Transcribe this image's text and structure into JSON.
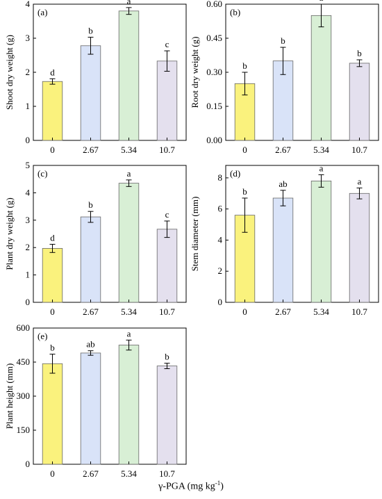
{
  "figure": {
    "xlabel_prefix": "γ-PGA (mg kg",
    "xlabel_sup": "-1",
    "xlabel_suffix": ")",
    "bar_colors": [
      "#faf27d",
      "#d9e3f8",
      "#d8efd5",
      "#e4e0ee"
    ],
    "bar_stroke": "#666666"
  },
  "chart_data": [
    {
      "type": "bar",
      "panel": "(a)",
      "ylabel": "Shoot dry weight (g)",
      "categories": [
        "0",
        "2.67",
        "5.34",
        "10.7"
      ],
      "values": [
        1.73,
        2.78,
        3.8,
        2.33
      ],
      "errors": [
        0.08,
        0.25,
        0.1,
        0.3
      ],
      "letters": [
        "d",
        "b",
        "a",
        "c"
      ],
      "ylim": [
        0,
        4
      ],
      "yticks": [
        0,
        1,
        2,
        3,
        4
      ],
      "ytick_labels": [
        "0",
        "1",
        "2",
        "3",
        "4"
      ]
    },
    {
      "type": "bar",
      "panel": "(b)",
      "ylabel": "Root dry weight (g)",
      "categories": [
        "0",
        "2.67",
        "5.34",
        "10.7"
      ],
      "values": [
        0.25,
        0.35,
        0.55,
        0.34
      ],
      "errors": [
        0.05,
        0.06,
        0.05,
        0.015
      ],
      "letters": [
        "b",
        "b",
        "a",
        "b"
      ],
      "ylim": [
        0,
        0.6
      ],
      "yticks": [
        0,
        0.15,
        0.3,
        0.45,
        0.6
      ],
      "ytick_labels": [
        "0.00",
        "0.15",
        "0.30",
        "0.45",
        "0.60"
      ]
    },
    {
      "type": "bar",
      "panel": "(c)",
      "ylabel": "Plant dry weight (g)",
      "categories": [
        "0",
        "2.67",
        "5.34",
        "10.7"
      ],
      "values": [
        1.97,
        3.12,
        4.35,
        2.67
      ],
      "errors": [
        0.15,
        0.2,
        0.12,
        0.3
      ],
      "letters": [
        "d",
        "b",
        "a",
        "c"
      ],
      "ylim": [
        0,
        5
      ],
      "yticks": [
        0,
        1,
        2,
        3,
        4,
        5
      ],
      "ytick_labels": [
        "0",
        "1",
        "2",
        "3",
        "4",
        "5"
      ]
    },
    {
      "type": "bar",
      "panel": "(d)",
      "ylabel": "Stem diameter (mm)",
      "categories": [
        "0",
        "2.67",
        "5.34",
        "10.7"
      ],
      "values": [
        5.6,
        6.7,
        7.8,
        7.0
      ],
      "errors": [
        1.1,
        0.5,
        0.4,
        0.35
      ],
      "letters": [
        "b",
        "ab",
        "a",
        "a"
      ],
      "ylim": [
        0,
        8.8
      ],
      "yticks": [
        0,
        2,
        4,
        6,
        8
      ],
      "ytick_labels": [
        "0",
        "2",
        "4",
        "6",
        "8"
      ]
    },
    {
      "type": "bar",
      "panel": "(e)",
      "ylabel": "Plant height (mm)",
      "categories": [
        "0",
        "2.67",
        "5.34",
        "10.7"
      ],
      "values": [
        443,
        490,
        525,
        433
      ],
      "errors": [
        42,
        10,
        22,
        12
      ],
      "letters": [
        "b",
        "ab",
        "a",
        "b"
      ],
      "ylim": [
        0,
        600
      ],
      "yticks": [
        0,
        150,
        300,
        450,
        600
      ],
      "ytick_labels": [
        "0",
        "150",
        "300",
        "450",
        "600"
      ]
    }
  ]
}
